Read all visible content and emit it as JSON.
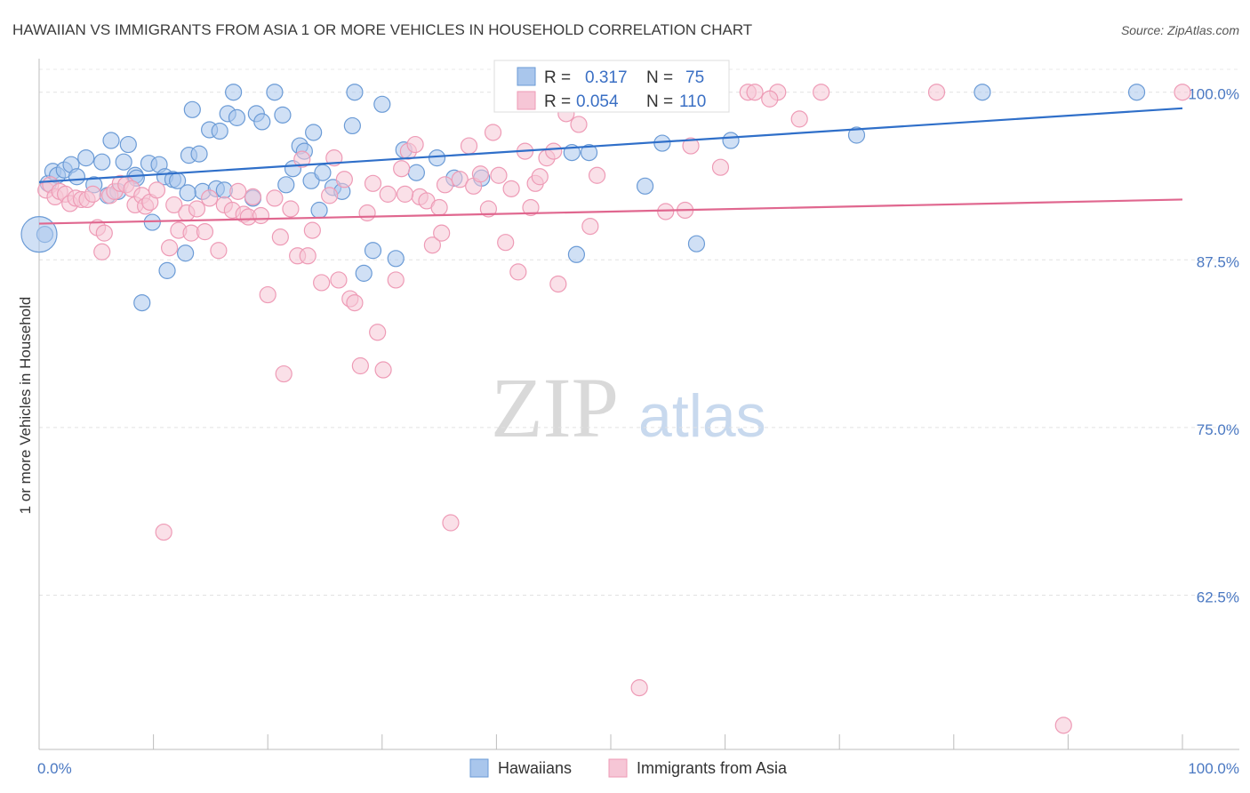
{
  "title": "HAWAIIAN VS IMMIGRANTS FROM ASIA 1 OR MORE VEHICLES IN HOUSEHOLD CORRELATION CHART",
  "source": "Source: ZipAtlas.com",
  "watermark": {
    "zip": "ZIP",
    "atlas": "atlas"
  },
  "chart_data": {
    "type": "scatter",
    "ylabel": "1 or more Vehicles in Household",
    "xlim": [
      0,
      100
    ],
    "ylim": [
      51,
      102.5
    ],
    "x_tick_labels": [
      {
        "value": 0,
        "label": "0.0%"
      },
      {
        "value": 100,
        "label": "100.0%"
      }
    ],
    "y_ticks": [
      {
        "value": 100,
        "label": "100.0%"
      },
      {
        "value": 87.5,
        "label": "87.5%"
      },
      {
        "value": 75,
        "label": "75.0%"
      },
      {
        "value": 62.5,
        "label": "62.5%"
      }
    ],
    "grid": true,
    "legend_position": "top-center",
    "series": [
      {
        "name": "Hawaiians",
        "color": "#6b9bd6",
        "fill": "#a9c6ec",
        "line_color": "#2f6fc9",
        "R": "0.317",
        "N": "75",
        "trend": {
          "x": [
            0,
            100
          ],
          "y": [
            93.3,
            98.8
          ]
        },
        "points": [
          [
            0.5,
            89.4
          ],
          [
            0.8,
            93.2
          ],
          [
            1.2,
            94.1
          ],
          [
            1.6,
            93.8
          ],
          [
            2.2,
            94.2
          ],
          [
            2.8,
            94.6
          ],
          [
            3.3,
            93.7
          ],
          [
            4.1,
            95.1
          ],
          [
            4.8,
            93.1
          ],
          [
            5.5,
            94.8
          ],
          [
            6.0,
            92.3
          ],
          [
            6.3,
            96.4
          ],
          [
            6.9,
            92.6
          ],
          [
            7.4,
            94.8
          ],
          [
            7.8,
            96.1
          ],
          [
            8.4,
            93.8
          ],
          [
            9.6,
            94.7
          ],
          [
            9.9,
            90.3
          ],
          [
            10.5,
            94.6
          ],
          [
            11.0,
            93.7
          ],
          [
            11.2,
            86.7
          ],
          [
            11.7,
            93.5
          ],
          [
            12.1,
            93.4
          ],
          [
            12.8,
            88.0
          ],
          [
            13.1,
            95.3
          ],
          [
            13.4,
            98.7
          ],
          [
            14.0,
            95.4
          ],
          [
            14.3,
            92.6
          ],
          [
            14.9,
            97.2
          ],
          [
            15.5,
            92.8
          ],
          [
            15.8,
            97.1
          ],
          [
            16.5,
            98.4
          ],
          [
            17.0,
            100.0
          ],
          [
            17.3,
            98.1
          ],
          [
            18.7,
            92.1
          ],
          [
            19.0,
            98.4
          ],
          [
            19.5,
            97.8
          ],
          [
            20.6,
            100.0
          ],
          [
            21.3,
            98.3
          ],
          [
            21.6,
            93.1
          ],
          [
            22.2,
            94.3
          ],
          [
            22.8,
            96.0
          ],
          [
            23.2,
            95.6
          ],
          [
            23.8,
            93.4
          ],
          [
            24.5,
            91.2
          ],
          [
            24.8,
            94.0
          ],
          [
            25.7,
            92.9
          ],
          [
            26.5,
            92.6
          ],
          [
            27.4,
            97.5
          ],
          [
            28.4,
            86.5
          ],
          [
            29.2,
            88.2
          ],
          [
            30.0,
            99.1
          ],
          [
            31.2,
            87.6
          ],
          [
            31.9,
            95.7
          ],
          [
            33.0,
            94.0
          ],
          [
            34.8,
            95.1
          ],
          [
            36.3,
            93.6
          ],
          [
            38.7,
            93.6
          ],
          [
            46.6,
            95.5
          ],
          [
            47.0,
            87.9
          ],
          [
            48.1,
            95.5
          ],
          [
            50.2,
            100.0
          ],
          [
            53.0,
            93.0
          ],
          [
            54.5,
            96.2
          ],
          [
            57.5,
            88.7
          ],
          [
            60.5,
            96.4
          ],
          [
            71.5,
            96.8
          ],
          [
            82.5,
            100.0
          ],
          [
            96.0,
            100.0
          ],
          [
            9.0,
            84.3
          ],
          [
            8.5,
            93.6
          ],
          [
            13.0,
            92.5
          ],
          [
            16.2,
            92.7
          ],
          [
            24.0,
            97.0
          ],
          [
            27.6,
            100.0
          ]
        ]
      },
      {
        "name": "Immigrants from Asia",
        "color": "#ee9bb6",
        "fill": "#f6c6d6",
        "line_color": "#e0678f",
        "R": "0.054",
        "N": "110",
        "trend": {
          "x": [
            0,
            100
          ],
          "y": [
            90.2,
            92.0
          ]
        },
        "points": [
          [
            0.6,
            92.7
          ],
          [
            1.0,
            93.1
          ],
          [
            1.4,
            92.2
          ],
          [
            1.8,
            92.6
          ],
          [
            2.3,
            92.4
          ],
          [
            2.7,
            91.7
          ],
          [
            3.2,
            92.1
          ],
          [
            3.7,
            92.0
          ],
          [
            4.2,
            92.0
          ],
          [
            4.7,
            92.4
          ],
          [
            5.1,
            89.9
          ],
          [
            5.5,
            88.1
          ],
          [
            5.7,
            89.5
          ],
          [
            6.2,
            92.3
          ],
          [
            6.6,
            92.6
          ],
          [
            7.1,
            93.2
          ],
          [
            7.6,
            93.1
          ],
          [
            8.1,
            92.8
          ],
          [
            8.4,
            91.6
          ],
          [
            9.0,
            92.3
          ],
          [
            9.3,
            91.5
          ],
          [
            9.7,
            91.8
          ],
          [
            10.3,
            92.7
          ],
          [
            10.9,
            67.2
          ],
          [
            11.4,
            88.4
          ],
          [
            11.8,
            91.6
          ],
          [
            12.2,
            89.7
          ],
          [
            12.9,
            91.0
          ],
          [
            13.3,
            89.5
          ],
          [
            13.8,
            91.3
          ],
          [
            14.5,
            89.6
          ],
          [
            14.9,
            92.1
          ],
          [
            15.7,
            88.2
          ],
          [
            16.2,
            91.6
          ],
          [
            16.9,
            91.2
          ],
          [
            17.4,
            92.6
          ],
          [
            17.9,
            90.9
          ],
          [
            18.3,
            90.7
          ],
          [
            18.7,
            92.2
          ],
          [
            19.4,
            90.8
          ],
          [
            20.0,
            84.9
          ],
          [
            20.6,
            92.1
          ],
          [
            21.1,
            89.2
          ],
          [
            21.4,
            79.0
          ],
          [
            22.0,
            91.3
          ],
          [
            22.6,
            87.8
          ],
          [
            23.0,
            95.0
          ],
          [
            23.5,
            87.8
          ],
          [
            23.9,
            89.7
          ],
          [
            24.7,
            85.8
          ],
          [
            25.4,
            92.3
          ],
          [
            25.8,
            95.1
          ],
          [
            26.2,
            86.0
          ],
          [
            26.7,
            93.5
          ],
          [
            27.2,
            84.6
          ],
          [
            27.6,
            84.3
          ],
          [
            28.1,
            79.6
          ],
          [
            28.7,
            91.0
          ],
          [
            29.2,
            93.2
          ],
          [
            29.6,
            82.1
          ],
          [
            30.1,
            79.3
          ],
          [
            30.5,
            92.4
          ],
          [
            31.2,
            86.0
          ],
          [
            31.7,
            94.3
          ],
          [
            32.3,
            95.6
          ],
          [
            32.9,
            96.1
          ],
          [
            33.3,
            92.2
          ],
          [
            33.9,
            91.9
          ],
          [
            34.4,
            88.6
          ],
          [
            35.0,
            91.4
          ],
          [
            35.5,
            93.1
          ],
          [
            36.0,
            67.9
          ],
          [
            36.8,
            93.5
          ],
          [
            37.6,
            96.0
          ],
          [
            38.0,
            93.0
          ],
          [
            38.6,
            93.9
          ],
          [
            39.3,
            91.3
          ],
          [
            39.7,
            97.0
          ],
          [
            40.2,
            93.8
          ],
          [
            40.8,
            88.8
          ],
          [
            41.3,
            92.8
          ],
          [
            41.9,
            86.6
          ],
          [
            42.5,
            95.6
          ],
          [
            43.0,
            91.4
          ],
          [
            43.4,
            93.2
          ],
          [
            43.8,
            93.7
          ],
          [
            44.4,
            95.1
          ],
          [
            45.0,
            95.6
          ],
          [
            45.4,
            85.7
          ],
          [
            46.1,
            98.4
          ],
          [
            47.2,
            97.6
          ],
          [
            48.2,
            90.0
          ],
          [
            48.8,
            93.8
          ],
          [
            52.5,
            55.6
          ],
          [
            53.0,
            100.0
          ],
          [
            54.8,
            91.1
          ],
          [
            56.5,
            91.2
          ],
          [
            59.6,
            94.4
          ],
          [
            62.0,
            100.0
          ],
          [
            62.6,
            100.0
          ],
          [
            64.6,
            100.0
          ],
          [
            66.5,
            98.0
          ],
          [
            68.4,
            100.0
          ],
          [
            78.5,
            100.0
          ],
          [
            89.6,
            52.8
          ],
          [
            100.0,
            100.0
          ],
          [
            32.0,
            92.4
          ],
          [
            35.2,
            89.5
          ],
          [
            57.0,
            96.0
          ],
          [
            63.9,
            99.5
          ]
        ]
      }
    ]
  }
}
